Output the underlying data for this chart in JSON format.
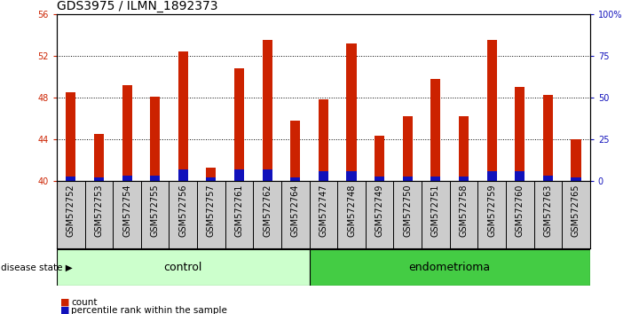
{
  "title": "GDS3975 / ILMN_1892373",
  "samples": [
    "GSM572752",
    "GSM572753",
    "GSM572754",
    "GSM572755",
    "GSM572756",
    "GSM572757",
    "GSM572761",
    "GSM572762",
    "GSM572764",
    "GSM572747",
    "GSM572748",
    "GSM572749",
    "GSM572750",
    "GSM572751",
    "GSM572758",
    "GSM572759",
    "GSM572760",
    "GSM572763",
    "GSM572765"
  ],
  "red_values": [
    48.5,
    44.5,
    49.2,
    48.1,
    52.4,
    41.2,
    50.8,
    53.5,
    45.8,
    47.8,
    53.2,
    44.3,
    46.2,
    49.8,
    46.2,
    53.5,
    49.0,
    48.2,
    44.0
  ],
  "blue_values": [
    0.38,
    0.28,
    0.45,
    0.45,
    1.1,
    0.28,
    1.1,
    1.1,
    0.28,
    0.9,
    0.9,
    0.38,
    0.38,
    0.38,
    0.38,
    0.9,
    0.9,
    0.45,
    0.28
  ],
  "ymin": 40,
  "ymax": 56,
  "yticks_left": [
    40,
    44,
    48,
    52,
    56
  ],
  "yticks_right_vals": [
    0,
    25,
    50,
    75,
    100
  ],
  "yticks_right_labels": [
    "0",
    "25",
    "50",
    "75",
    "100%"
  ],
  "control_count": 9,
  "endometrioma_count": 10,
  "bar_color_red": "#cc2200",
  "bar_color_blue": "#1111bb",
  "control_bg": "#ccffcc",
  "endo_bg": "#44cc44",
  "axis_bg": "#cccccc",
  "bar_width": 0.35,
  "title_fontsize": 10,
  "tick_fontsize": 7,
  "label_fontsize": 9
}
